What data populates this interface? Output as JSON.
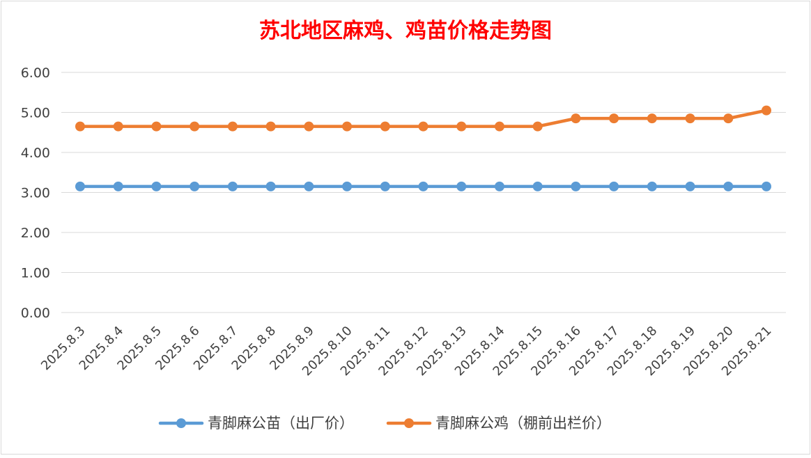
{
  "chart_data": {
    "type": "line",
    "title": "苏北地区麻鸡、鸡苗价格走势图",
    "title_color": "#ff0000",
    "categories": [
      "2025.8.3",
      "2025.8.4",
      "2025.8.5",
      "2025.8.6",
      "2025.8.7",
      "2025.8.8",
      "2025.8.9",
      "2025.8.10",
      "2025.8.11",
      "2025.8.12",
      "2025.8.13",
      "2025.8.14",
      "2025.8.15",
      "2025.8.16",
      "2025.8.17",
      "2025.8.18",
      "2025.8.19",
      "2025.8.20",
      "2025.8.21"
    ],
    "ylim": [
      0,
      6
    ],
    "yticks": [
      "0.00",
      "1.00",
      "2.00",
      "3.00",
      "4.00",
      "5.00",
      "6.00"
    ],
    "grid": true,
    "legend_position": "bottom",
    "series": [
      {
        "name": "青脚麻公苗（出厂价）",
        "color": "#5b9bd5",
        "values": [
          3.15,
          3.15,
          3.15,
          3.15,
          3.15,
          3.15,
          3.15,
          3.15,
          3.15,
          3.15,
          3.15,
          3.15,
          3.15,
          3.15,
          3.15,
          3.15,
          3.15,
          3.15,
          3.15
        ]
      },
      {
        "name": "青脚麻公鸡（棚前出栏价）",
        "color": "#ed7d31",
        "values": [
          4.65,
          4.65,
          4.65,
          4.65,
          4.65,
          4.65,
          4.65,
          4.65,
          4.65,
          4.65,
          4.65,
          4.65,
          4.65,
          4.85,
          4.85,
          4.85,
          4.85,
          4.85,
          5.05
        ]
      }
    ]
  }
}
